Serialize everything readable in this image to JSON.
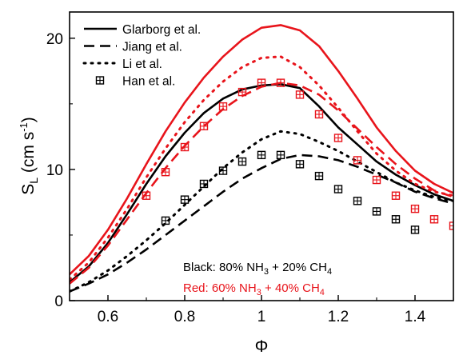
{
  "chart_data": {
    "type": "line",
    "xlabel": "Φ",
    "ylabel_main": "S",
    "ylabel_sub": "L",
    "ylabel_unit_a": " (cm s",
    "ylabel_unit_sup": "-1",
    "ylabel_unit_b": ")",
    "xlim": [
      0.5,
      1.5
    ],
    "ylim": [
      0,
      22
    ],
    "xticks": [
      0.6,
      0.8,
      1.0,
      1.2,
      1.4
    ],
    "xtick_labels": [
      "0.6",
      "0.8",
      "1",
      "1.2",
      "1.4"
    ],
    "yticks": [
      0,
      10,
      20
    ],
    "ytick_labels": [
      "0",
      "10",
      "20"
    ],
    "grid": false,
    "legend": {
      "placement": "top-left",
      "entries": [
        {
          "label": "Glarborg et al.",
          "style": "solid"
        },
        {
          "label": "Jiang et al.",
          "style": "dash"
        },
        {
          "label": "Li et al.",
          "style": "dot"
        },
        {
          "label": "Han et al.",
          "style": "marker"
        }
      ]
    },
    "annotations": [
      {
        "color": "#000000",
        "prefix": "Black: 80% NH",
        "sub1": "3",
        "mid": " + 20% CH",
        "sub2": "4"
      },
      {
        "color": "#e8141b",
        "prefix": "Red: 60% NH",
        "sub1": "3",
        "mid": " + 40% CH",
        "sub2": "4"
      }
    ],
    "series": [
      {
        "color": "#000000",
        "style": "solid",
        "x": [
          0.5,
          0.55,
          0.6,
          0.65,
          0.7,
          0.75,
          0.8,
          0.85,
          0.9,
          0.95,
          1.0,
          1.05,
          1.1,
          1.15,
          1.2,
          1.25,
          1.3,
          1.35,
          1.4,
          1.45,
          1.5
        ],
        "y": [
          1.4,
          2.6,
          4.4,
          6.6,
          8.9,
          11.0,
          12.8,
          14.3,
          15.4,
          16.1,
          16.4,
          16.5,
          16.2,
          14.8,
          13.2,
          11.9,
          10.6,
          9.6,
          8.8,
          8.1,
          7.6
        ]
      },
      {
        "color": "#000000",
        "style": "dash",
        "x": [
          0.5,
          0.55,
          0.6,
          0.65,
          0.7,
          0.75,
          0.8,
          0.85,
          0.9,
          0.95,
          1.0,
          1.05,
          1.1,
          1.15,
          1.2,
          1.25,
          1.3,
          1.35,
          1.4,
          1.45,
          1.5
        ],
        "y": [
          0.7,
          1.3,
          2.0,
          2.9,
          3.9,
          5.0,
          6.1,
          7.2,
          8.3,
          9.3,
          10.1,
          10.8,
          11.1,
          11.0,
          10.7,
          10.2,
          9.6,
          9.0,
          8.3,
          7.8,
          7.4
        ]
      },
      {
        "color": "#000000",
        "style": "dot",
        "x": [
          0.5,
          0.55,
          0.6,
          0.65,
          0.7,
          0.75,
          0.8,
          0.85,
          0.9,
          0.95,
          1.0,
          1.05,
          1.1,
          1.15,
          1.2,
          1.25,
          1.3,
          1.35,
          1.4,
          1.45,
          1.5
        ],
        "y": [
          0.7,
          1.4,
          2.3,
          3.4,
          4.6,
          5.9,
          7.3,
          8.7,
          10.1,
          11.3,
          12.3,
          12.9,
          12.7,
          12.1,
          11.4,
          10.6,
          9.8,
          9.0,
          8.4,
          7.9,
          7.6
        ]
      },
      {
        "color": "#000000",
        "style": "marker",
        "x": [
          0.75,
          0.8,
          0.85,
          0.9,
          0.95,
          1.0,
          1.05,
          1.1,
          1.15,
          1.2,
          1.25,
          1.3,
          1.35,
          1.4
        ],
        "y": [
          6.1,
          7.7,
          8.9,
          9.9,
          10.6,
          11.1,
          11.1,
          10.4,
          9.5,
          8.5,
          7.6,
          6.8,
          6.2,
          5.4
        ]
      },
      {
        "color": "#e8141b",
        "style": "solid",
        "x": [
          0.5,
          0.55,
          0.6,
          0.65,
          0.7,
          0.75,
          0.8,
          0.85,
          0.9,
          0.95,
          1.0,
          1.05,
          1.1,
          1.15,
          1.2,
          1.25,
          1.3,
          1.35,
          1.4,
          1.45,
          1.5
        ],
        "y": [
          2.0,
          3.4,
          5.4,
          7.8,
          10.4,
          12.9,
          15.1,
          17.0,
          18.6,
          19.9,
          20.8,
          21.0,
          20.6,
          19.4,
          17.5,
          15.4,
          13.2,
          11.4,
          9.9,
          8.9,
          8.2
        ]
      },
      {
        "color": "#e8141b",
        "style": "dash",
        "x": [
          0.5,
          0.55,
          0.6,
          0.65,
          0.7,
          0.75,
          0.8,
          0.85,
          0.9,
          0.95,
          1.0,
          1.05,
          1.1,
          1.15,
          1.2,
          1.25,
          1.3,
          1.35,
          1.4,
          1.45,
          1.5
        ],
        "y": [
          1.3,
          2.5,
          4.2,
          6.2,
          8.2,
          10.1,
          11.8,
          13.3,
          14.6,
          15.6,
          16.3,
          16.6,
          16.4,
          15.7,
          14.5,
          13.1,
          11.7,
          10.4,
          9.3,
          8.4,
          7.9
        ]
      },
      {
        "color": "#e8141b",
        "style": "dot",
        "x": [
          0.5,
          0.55,
          0.6,
          0.65,
          0.7,
          0.75,
          0.8,
          0.85,
          0.9,
          0.95,
          1.0,
          1.05,
          1.1,
          1.15,
          1.2,
          1.25,
          1.3,
          1.35,
          1.4,
          1.45,
          1.5
        ],
        "y": [
          1.6,
          2.9,
          4.8,
          7.0,
          9.4,
          11.6,
          13.6,
          15.3,
          16.7,
          17.8,
          18.5,
          18.6,
          17.8,
          16.4,
          14.7,
          12.9,
          11.2,
          9.9,
          8.9,
          8.3,
          8.0
        ]
      },
      {
        "color": "#e8141b",
        "style": "marker",
        "x": [
          0.7,
          0.75,
          0.8,
          0.85,
          0.9,
          0.95,
          1.0,
          1.05,
          1.1,
          1.15,
          1.2,
          1.25,
          1.3,
          1.35,
          1.4,
          1.45,
          1.5
        ],
        "y": [
          8.0,
          9.8,
          11.7,
          13.3,
          14.8,
          15.9,
          16.6,
          16.6,
          15.7,
          14.2,
          12.4,
          10.7,
          9.2,
          8.0,
          7.0,
          6.2,
          5.7
        ]
      }
    ]
  }
}
